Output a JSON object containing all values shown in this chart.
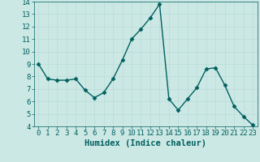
{
  "x": [
    0,
    1,
    2,
    3,
    4,
    5,
    6,
    7,
    8,
    9,
    10,
    11,
    12,
    13,
    14,
    15,
    16,
    17,
    18,
    19,
    20,
    21,
    22,
    23
  ],
  "y": [
    9,
    7.8,
    7.7,
    7.7,
    7.8,
    6.9,
    6.3,
    6.7,
    7.8,
    9.3,
    11.0,
    11.8,
    12.7,
    13.8,
    6.2,
    5.3,
    6.2,
    7.1,
    8.6,
    8.7,
    7.3,
    5.6,
    4.8,
    4.1
  ],
  "line_color": "#006060",
  "marker": "D",
  "marker_size": 2.5,
  "linewidth": 1.0,
  "xlabel": "Humidex (Indice chaleur)",
  "ylim": [
    4,
    14
  ],
  "yticks": [
    4,
    5,
    6,
    7,
    8,
    9,
    10,
    11,
    12,
    13,
    14
  ],
  "xticks": [
    0,
    1,
    2,
    3,
    4,
    5,
    6,
    7,
    8,
    9,
    10,
    11,
    12,
    13,
    14,
    15,
    16,
    17,
    18,
    19,
    20,
    21,
    22,
    23
  ],
  "grid_color": "#b8dcd6",
  "bg_color": "#cce8e4",
  "font_color": "#006060",
  "tick_fontsize": 6.5,
  "xlabel_fontsize": 7.5
}
